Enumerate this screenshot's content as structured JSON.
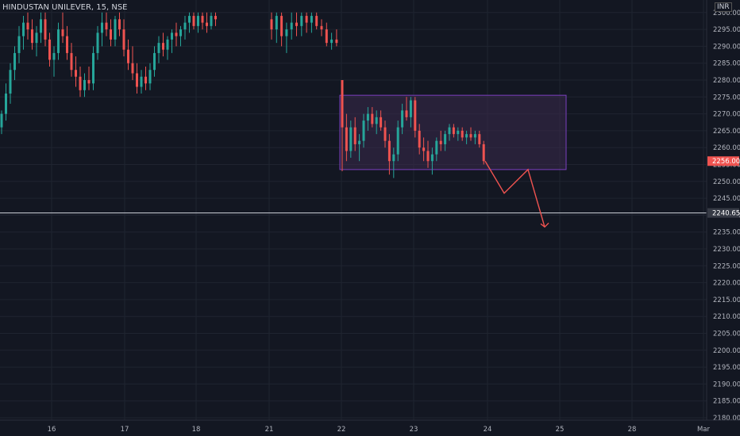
{
  "header": {
    "symbol_title": "HINDUSTAN UNILEVER, 15, NSE",
    "currency": "INR"
  },
  "colors": {
    "background": "#131722",
    "up": "#26a69a",
    "down": "#ef5350",
    "grid": "#1f2430",
    "axis_text": "#b2b5be",
    "zone_border": "#7b3fbf",
    "zone_fill": "#3b2a4d"
  },
  "chart_data": {
    "type": "candlestick",
    "symbol": "HINDUSTAN UNILEVER",
    "interval": "15",
    "exchange": "NSE",
    "currency": "INR",
    "ylim": [
      2178,
      2302
    ],
    "y_ticks": [
      "2180.00",
      "2185.00",
      "2190.00",
      "2195.00",
      "2200.00",
      "2205.00",
      "2210.00",
      "2215.00",
      "2220.00",
      "2225.00",
      "2230.00",
      "2235.00",
      "2240.00",
      "2245.00",
      "2250.00",
      "2255.00",
      "2260.00",
      "2265.00",
      "2270.00",
      "2275.00",
      "2280.00",
      "2285.00",
      "2290.00",
      "2295.00",
      "2300.00"
    ],
    "x_ticks": [
      "16",
      "17",
      "18",
      "21",
      "22",
      "23",
      "24",
      "25",
      "28",
      "Mar"
    ],
    "last_price": "2256.00",
    "horizontal_level": "2240.65",
    "zone": {
      "price_top": 2275.5,
      "price_bottom": 2253.5,
      "from": "22",
      "to": "24-25"
    },
    "projection_path_prices": [
      2256,
      2246.5,
      2253.5,
      2236.5
    ],
    "candles_segment_1": [
      [
        2266,
        2271,
        2264,
        2270
      ],
      [
        2270,
        2279,
        2268,
        2276
      ],
      [
        2276,
        2285,
        2273,
        2283
      ],
      [
        2283,
        2290,
        2280,
        2288
      ],
      [
        2288,
        2296,
        2285,
        2293
      ],
      [
        2293,
        2299,
        2289,
        2297
      ],
      [
        2297,
        2300,
        2292,
        2295
      ],
      [
        2295,
        2298,
        2289,
        2291
      ],
      [
        2291,
        2296,
        2287,
        2294
      ],
      [
        2294,
        2300,
        2291,
        2298
      ],
      [
        2298,
        2300,
        2290,
        2292
      ],
      [
        2292,
        2294,
        2284,
        2286
      ],
      [
        2286,
        2290,
        2281,
        2288
      ],
      [
        2288,
        2297,
        2286,
        2295
      ],
      [
        2295,
        2300,
        2291,
        2293
      ],
      [
        2293,
        2296,
        2286,
        2288
      ],
      [
        2288,
        2291,
        2281,
        2283
      ],
      [
        2283,
        2287,
        2278,
        2281
      ],
      [
        2281,
        2284,
        2275,
        2277
      ],
      [
        2277,
        2282,
        2275,
        2280
      ],
      [
        2280,
        2284,
        2277,
        2279
      ],
      [
        2279,
        2290,
        2277,
        2288
      ],
      [
        2288,
        2296,
        2286,
        2294
      ],
      [
        2294,
        2300,
        2290,
        2297
      ],
      [
        2297,
        2300,
        2293,
        2295
      ],
      [
        2295,
        2298,
        2290,
        2292
      ],
      [
        2292,
        2299,
        2290,
        2298
      ],
      [
        2298,
        2300,
        2293,
        2295
      ],
      [
        2295,
        2298,
        2287,
        2289
      ],
      [
        2289,
        2292,
        2283,
        2285
      ],
      [
        2285,
        2290,
        2280,
        2282
      ],
      [
        2282,
        2285,
        2276,
        2278
      ],
      [
        2278,
        2283,
        2276,
        2281
      ],
      [
        2281,
        2284,
        2277,
        2279
      ],
      [
        2279,
        2285,
        2277,
        2283
      ],
      [
        2283,
        2290,
        2281,
        2288
      ],
      [
        2288,
        2293,
        2285,
        2291
      ],
      [
        2291,
        2294,
        2287,
        2289
      ],
      [
        2289,
        2293,
        2286,
        2292
      ],
      [
        2292,
        2295,
        2288,
        2294
      ],
      [
        2294,
        2297,
        2290,
        2293
      ],
      [
        2293,
        2296,
        2290,
        2295
      ],
      [
        2295,
        2299,
        2292,
        2297
      ],
      [
        2297,
        2300,
        2294,
        2299
      ],
      [
        2299,
        2300,
        2295,
        2296
      ],
      [
        2296,
        2300,
        2294,
        2299
      ],
      [
        2299,
        2300,
        2295,
        2297
      ],
      [
        2297,
        2300,
        2294,
        2296
      ],
      [
        2296,
        2300,
        2295,
        2299
      ],
      [
        2299,
        2300,
        2296,
        2298
      ]
    ],
    "candles_segment_2": [
      [
        2298,
        2300,
        2292,
        2295
      ],
      [
        2295,
        2300,
        2291,
        2299
      ],
      [
        2299,
        2300,
        2290,
        2293
      ],
      [
        2293,
        2297,
        2288,
        2295
      ],
      [
        2295,
        2300,
        2292,
        2297
      ],
      [
        2297,
        2300,
        2293,
        2296
      ],
      [
        2296,
        2300,
        2293,
        2299
      ],
      [
        2299,
        2300,
        2294,
        2297
      ],
      [
        2297,
        2300,
        2294,
        2299
      ],
      [
        2299,
        2300,
        2295,
        2296
      ],
      [
        2296,
        2298,
        2293,
        2295
      ],
      [
        2295,
        2297,
        2290,
        2291
      ],
      [
        2291,
        2294,
        2289,
        2292
      ],
      [
        2292,
        2295,
        2290,
        2291
      ]
    ],
    "candles_segment_3": [
      [
        2280,
        2280,
        2253,
        2266
      ],
      [
        2266,
        2270,
        2256,
        2259
      ],
      [
        2259,
        2268,
        2257,
        2266
      ],
      [
        2266,
        2269,
        2259,
        2261
      ],
      [
        2261,
        2264,
        2256,
        2262
      ],
      [
        2262,
        2270,
        2260,
        2268
      ],
      [
        2268,
        2272,
        2265,
        2270
      ],
      [
        2270,
        2272,
        2266,
        2267
      ],
      [
        2267,
        2271,
        2264,
        2269
      ],
      [
        2269,
        2271,
        2265,
        2266
      ],
      [
        2266,
        2268,
        2260,
        2262
      ],
      [
        2262,
        2264,
        2252,
        2256
      ],
      [
        2256,
        2260,
        2251,
        2258
      ],
      [
        2258,
        2268,
        2256,
        2266
      ],
      [
        2266,
        2273,
        2264,
        2271
      ],
      [
        2271,
        2275,
        2268,
        2269
      ],
      [
        2269,
        2275,
        2266,
        2274
      ],
      [
        2274,
        2275,
        2263,
        2265
      ],
      [
        2265,
        2267,
        2258,
        2260
      ],
      [
        2260,
        2263,
        2256,
        2259
      ],
      [
        2259,
        2262,
        2254,
        2256
      ],
      [
        2256,
        2260,
        2252,
        2258
      ],
      [
        2258,
        2263,
        2256,
        2262
      ],
      [
        2262,
        2265,
        2259,
        2261
      ],
      [
        2261,
        2265,
        2259,
        2264
      ],
      [
        2264,
        2267,
        2262,
        2266
      ],
      [
        2266,
        2267,
        2263,
        2264
      ],
      [
        2264,
        2266,
        2262,
        2265
      ],
      [
        2265,
        2266,
        2262,
        2263
      ],
      [
        2263,
        2265,
        2261,
        2264
      ],
      [
        2264,
        2266,
        2262,
        2263
      ],
      [
        2263,
        2265,
        2261,
        2264
      ],
      [
        2264,
        2265,
        2260,
        2261
      ],
      [
        2261,
        2262,
        2255,
        2256
      ]
    ]
  }
}
